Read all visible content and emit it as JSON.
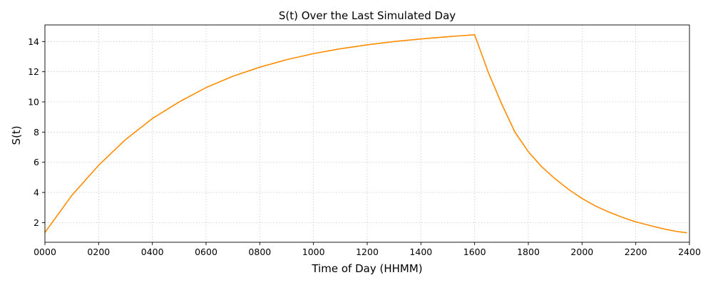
{
  "chart_data": {
    "type": "line",
    "title": "S(t) Over the Last Simulated Day",
    "xlabel": "Time of Day (HHMM)",
    "ylabel": "S(t)",
    "xlim": [
      0,
      24
    ],
    "ylim": [
      0.7,
      15.1
    ],
    "grid": true,
    "x_ticks": [
      0,
      2,
      4,
      6,
      8,
      10,
      12,
      14,
      16,
      18,
      20,
      22,
      24
    ],
    "x_tick_labels": [
      "0000",
      "0200",
      "0400",
      "0600",
      "0800",
      "1000",
      "1200",
      "1400",
      "1600",
      "1800",
      "2000",
      "2200",
      "2400"
    ],
    "y_ticks": [
      2,
      4,
      6,
      8,
      10,
      12,
      14
    ],
    "y_tick_labels": [
      "2",
      "4",
      "6",
      "8",
      "10",
      "12",
      "14"
    ],
    "series": [
      {
        "color": "#ff8c00",
        "x": [
          0,
          1,
          2,
          3,
          4,
          5,
          6,
          7,
          8,
          9,
          10,
          11,
          12,
          13,
          14,
          15,
          16,
          16.5,
          17,
          17.5,
          18,
          18.5,
          19,
          19.5,
          20,
          20.5,
          21,
          21.5,
          22,
          22.5,
          23,
          23.5,
          23.9
        ],
        "y": [
          1.35,
          3.8,
          5.8,
          7.5,
          8.9,
          10.0,
          10.95,
          11.7,
          12.3,
          12.8,
          13.2,
          13.52,
          13.78,
          14.0,
          14.17,
          14.32,
          14.45,
          12.0,
          9.9,
          8.0,
          6.7,
          5.7,
          4.9,
          4.2,
          3.6,
          3.1,
          2.7,
          2.35,
          2.05,
          1.82,
          1.6,
          1.42,
          1.33
        ]
      }
    ]
  }
}
